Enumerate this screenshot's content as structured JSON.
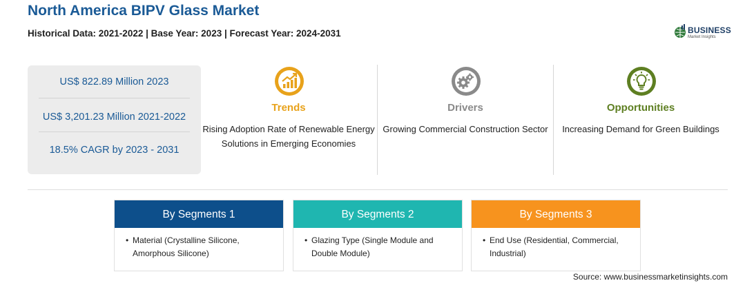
{
  "header": {
    "title": "North America BIPV Glass Market",
    "subtitle": "Historical Data: 2021-2022 | Base Year: 2023 | Forecast Year: 2024-2031"
  },
  "logo": {
    "name": "BUSINESS",
    "tagline": "Market Insights"
  },
  "stats": [
    {
      "text": "US$ 822.89 Million 2023"
    },
    {
      "text": "US$ 3,201.23 Million 2021-2022"
    },
    {
      "text": "18.5% CAGR by 2023 - 2031"
    }
  ],
  "columns": [
    {
      "icon": "trend-chart-icon",
      "heading": "Trends",
      "color": "#e8a21b",
      "text": "Rising Adoption Rate of Renewable Energy Solutions in Emerging Economies"
    },
    {
      "icon": "gears-icon",
      "heading": "Drivers",
      "color": "#8a8a8a",
      "text": "Growing Commercial Construction Sector"
    },
    {
      "icon": "lightbulb-icon",
      "heading": "Opportunities",
      "color": "#5e7f22",
      "text": "Increasing Demand for Green Buildings"
    }
  ],
  "segments": [
    {
      "title": "By Segments 1",
      "color": "#0d4f8b",
      "bullet": "Material (Crystalline Silicone, Amorphous Silicone)"
    },
    {
      "title": "By Segments 2",
      "color": "#1fb6b0",
      "bullet": "Glazing Type (Single Module and Double Module)"
    },
    {
      "title": "By Segments 3",
      "color": "#f7931e",
      "bullet": "End Use (Residential, Commercial, Industrial)"
    }
  ],
  "footer": {
    "source": "Source: www.businessmarketinsights.com"
  }
}
